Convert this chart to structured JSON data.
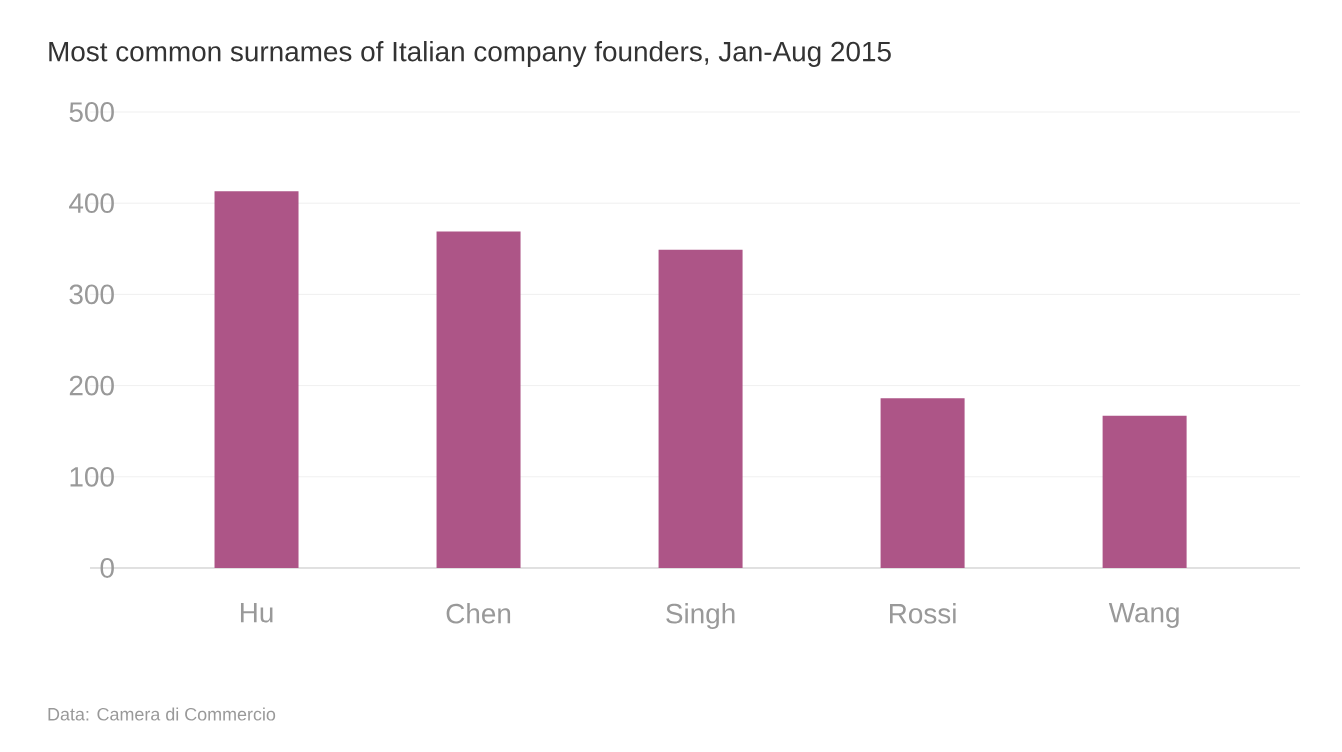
{
  "chart_data": {
    "type": "bar",
    "title": "Most common surnames of Italian company founders, Jan-Aug 2015",
    "categories": [
      "Hu",
      "Chen",
      "Singh",
      "Rossi",
      "Wang"
    ],
    "values": [
      413,
      369,
      349,
      186,
      167
    ],
    "color": "#ad5587",
    "ylim": [
      0,
      500
    ],
    "yticks": [
      0,
      100,
      200,
      300,
      400,
      500
    ],
    "grid": "y",
    "annotations": [
      "Data: Camera di Commercio"
    ]
  }
}
